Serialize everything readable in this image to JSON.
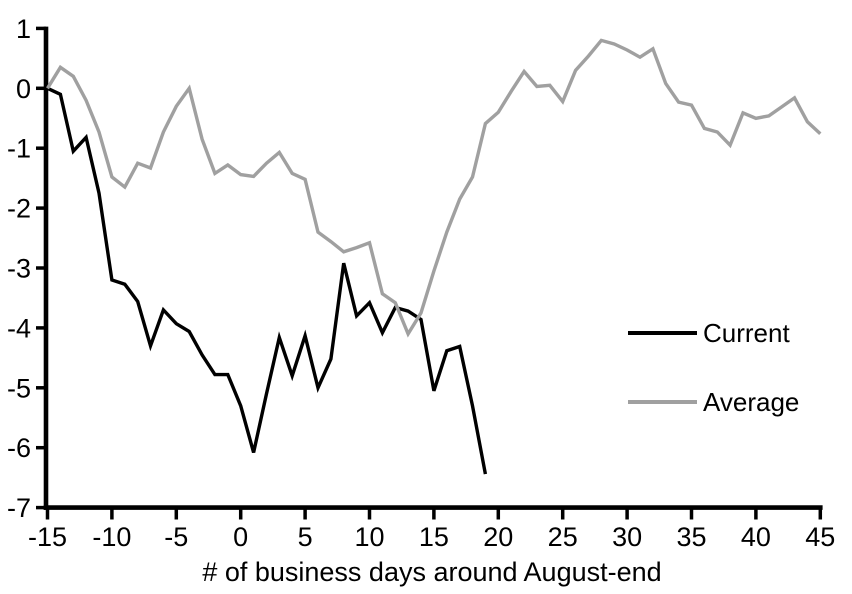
{
  "chart_data": {
    "type": "line",
    "title": "",
    "xlabel": "# of business days around August-end",
    "ylabel": "",
    "xlim": [
      -15,
      45
    ],
    "ylim": [
      -7,
      1
    ],
    "x_ticks": [
      -15,
      -10,
      -5,
      0,
      5,
      10,
      15,
      20,
      25,
      30,
      35,
      40,
      45
    ],
    "y_ticks": [
      1,
      0,
      -1,
      -2,
      -3,
      -4,
      -5,
      -6,
      -7
    ],
    "grid": false,
    "legend_position": "middle-right",
    "background_color": "#ffffff",
    "axis_color": "#000000",
    "series": [
      {
        "name": "Current",
        "color": "#000000",
        "x": [
          -15,
          -14,
          -13,
          -12,
          -11,
          -10,
          -9,
          -8,
          -7,
          -6,
          -5,
          -4,
          -3,
          -2,
          -1,
          0,
          1,
          2,
          3,
          4,
          5,
          6,
          7,
          8,
          9,
          10,
          11,
          12,
          13,
          14,
          15,
          16,
          17,
          18,
          19
        ],
        "values": [
          0.0,
          -0.1,
          -1.05,
          -0.82,
          -1.75,
          -3.2,
          -3.27,
          -3.56,
          -4.3,
          -3.7,
          -3.93,
          -4.06,
          -4.45,
          -4.78,
          -4.78,
          -5.3,
          -6.08,
          -5.1,
          -4.16,
          -4.8,
          -4.13,
          -5.0,
          -4.52,
          -2.92,
          -3.8,
          -3.58,
          -4.08,
          -3.66,
          -3.72,
          -3.86,
          -5.05,
          -4.38,
          -4.31,
          -5.3,
          -6.44
        ]
      },
      {
        "name": "Average",
        "color": "#a0a0a0",
        "x": [
          -15,
          -14,
          -13,
          -12,
          -11,
          -10,
          -9,
          -8,
          -7,
          -6,
          -5,
          -4,
          -3,
          -2,
          -1,
          0,
          1,
          2,
          3,
          4,
          5,
          6,
          7,
          8,
          9,
          10,
          11,
          12,
          13,
          14,
          15,
          16,
          17,
          18,
          19,
          20,
          21,
          22,
          23,
          24,
          25,
          26,
          27,
          28,
          29,
          30,
          31,
          32,
          33,
          34,
          35,
          36,
          37,
          38,
          39,
          40,
          41,
          42,
          43,
          44,
          45
        ],
        "values": [
          0.0,
          0.35,
          0.2,
          -0.2,
          -0.73,
          -1.48,
          -1.65,
          -1.25,
          -1.33,
          -0.73,
          -0.3,
          0.0,
          -0.85,
          -1.42,
          -1.28,
          -1.44,
          -1.47,
          -1.25,
          -1.07,
          -1.42,
          -1.52,
          -2.4,
          -2.56,
          -2.73,
          -2.66,
          -2.58,
          -3.43,
          -3.58,
          -4.1,
          -3.75,
          -3.05,
          -2.4,
          -1.85,
          -1.48,
          -0.59,
          -0.4,
          -0.05,
          0.28,
          0.03,
          0.05,
          -0.22,
          0.3,
          0.54,
          0.8,
          0.74,
          0.64,
          0.52,
          0.66,
          0.08,
          -0.23,
          -0.28,
          -0.67,
          -0.73,
          -0.95,
          -0.41,
          -0.5,
          -0.46,
          -0.31,
          -0.16,
          -0.56,
          -0.76
        ]
      }
    ]
  }
}
